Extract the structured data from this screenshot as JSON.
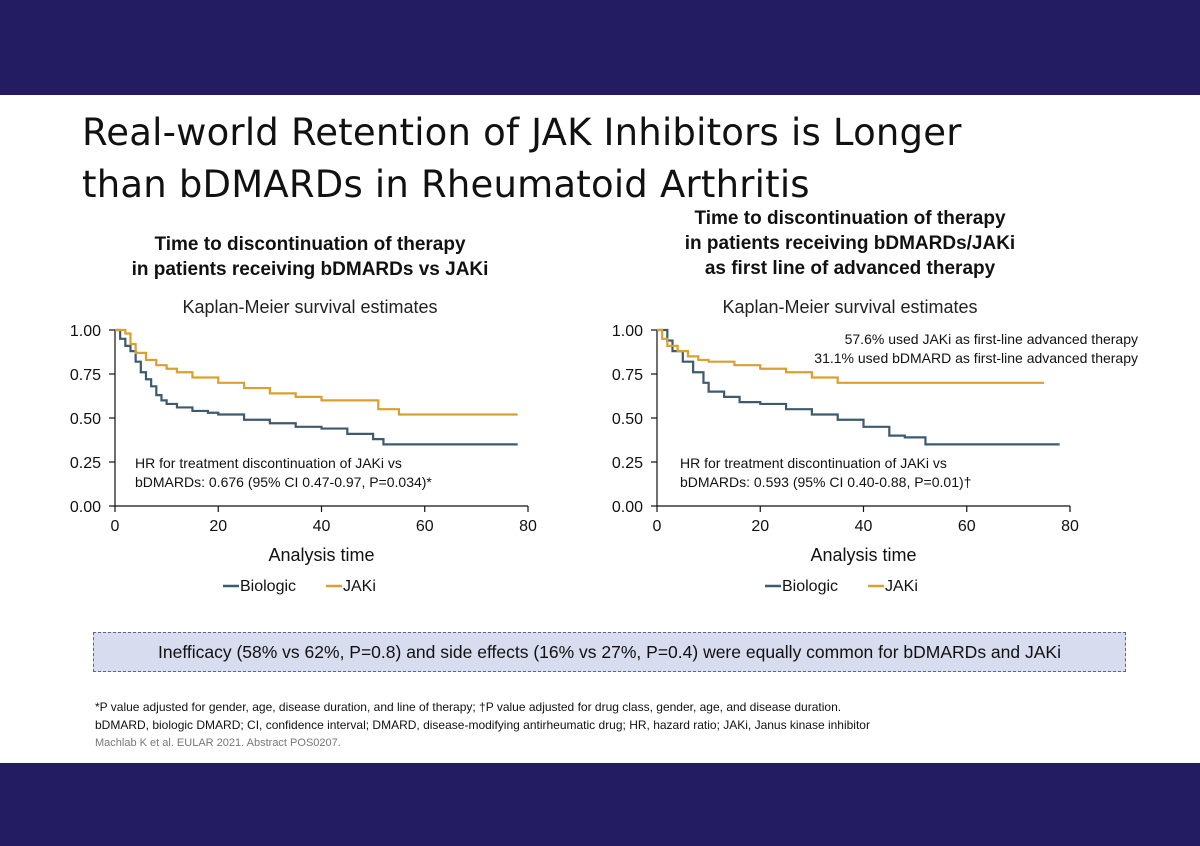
{
  "slide": {
    "title_lines": [
      "Real-world Retention of JAK Inhibitors is Longer",
      "than bDMARDs in Rheumatoid Arthritis"
    ],
    "callout": "Inefficacy (58% vs 62%, P=0.8) and side effects (16% vs 27%, P=0.4) were equally common for bDMARDs and JAKi",
    "footnotes": [
      "*P value adjusted for gender, age, disease duration, and line of therapy; †P value adjusted for drug class, gender, age, and disease duration.",
      "bDMARD, biologic DMARD; CI, confidence interval; DMARD, disease-modifying antirheumatic drug; HR, hazard ratio; JAKi, Janus kinase inhibitor"
    ],
    "reference": "Machlab K et al. EULAR 2021. Abstract POS0207."
  },
  "colors": {
    "background": "#241c63",
    "biologic": "#3e5a6e",
    "jaki": "#d9a02f",
    "callout_bg": "#d7dcee"
  },
  "chart_data": [
    {
      "type": "line",
      "title_lines": [
        "Time to discontinuation of therapy",
        "in patients receiving bDMARDs vs JAKi"
      ],
      "subtitle": "Kaplan-Meier survival estimates",
      "xlabel": "Analysis time",
      "ylabel": "",
      "xlim": [
        0,
        80
      ],
      "ylim": [
        0,
        1
      ],
      "x_ticks": [
        "0",
        "20",
        "40",
        "60",
        "80"
      ],
      "y_ticks": [
        "0.00",
        "0.25",
        "0.50",
        "0.75",
        "1.00"
      ],
      "legend_position": "bottom",
      "annotations": [
        "HR for treatment discontinuation of JAKi vs",
        "bDMARDs: 0.676 (95% CI 0.47-0.97, P=0.034)*"
      ],
      "series": [
        {
          "name": "Biologic",
          "color": "#3e5a6e",
          "x": [
            0,
            1,
            2,
            3,
            4,
            5,
            6,
            7,
            8,
            9,
            10,
            12,
            15,
            18,
            20,
            25,
            30,
            35,
            40,
            45,
            50,
            52,
            60,
            78
          ],
          "y": [
            1.0,
            0.95,
            0.91,
            0.88,
            0.82,
            0.76,
            0.72,
            0.68,
            0.63,
            0.6,
            0.58,
            0.56,
            0.54,
            0.53,
            0.52,
            0.49,
            0.47,
            0.45,
            0.44,
            0.41,
            0.38,
            0.35,
            0.35,
            0.35
          ]
        },
        {
          "name": "JAKi",
          "color": "#d9a02f",
          "x": [
            0,
            2,
            3,
            4,
            6,
            8,
            10,
            12,
            15,
            20,
            25,
            30,
            35,
            40,
            50,
            51,
            55,
            60,
            78
          ],
          "y": [
            1.0,
            0.98,
            0.92,
            0.87,
            0.83,
            0.8,
            0.78,
            0.76,
            0.73,
            0.7,
            0.67,
            0.64,
            0.62,
            0.6,
            0.6,
            0.55,
            0.52,
            0.52,
            0.52
          ]
        }
      ]
    },
    {
      "type": "line",
      "title_lines": [
        "Time to discontinuation of therapy",
        "in patients receiving bDMARDs/JAKi",
        "as first line of advanced therapy"
      ],
      "subtitle": "Kaplan-Meier survival estimates",
      "xlabel": "Analysis time",
      "ylabel": "",
      "xlim": [
        0,
        80
      ],
      "ylim": [
        0,
        1
      ],
      "x_ticks": [
        "0",
        "20",
        "40",
        "60",
        "80"
      ],
      "y_ticks": [
        "0.00",
        "0.25",
        "0.50",
        "0.75",
        "1.00"
      ],
      "legend_position": "bottom",
      "notes": [
        "57.6% used JAKi as first-line advanced therapy",
        "31.1% used bDMARD as first-line advanced therapy"
      ],
      "annotations": [
        "HR for treatment discontinuation of JAKi vs",
        "bDMARDs: 0.593 (95% CI 0.40-0.88, P=0.01)†"
      ],
      "series": [
        {
          "name": "Biologic",
          "color": "#3e5a6e",
          "x": [
            0,
            2,
            3,
            5,
            7,
            9,
            10,
            13,
            16,
            20,
            25,
            30,
            33,
            35,
            40,
            45,
            48,
            52,
            60,
            78
          ],
          "y": [
            1.0,
            0.94,
            0.88,
            0.82,
            0.76,
            0.7,
            0.65,
            0.62,
            0.59,
            0.58,
            0.55,
            0.52,
            0.52,
            0.49,
            0.45,
            0.4,
            0.39,
            0.35,
            0.35,
            0.35
          ]
        },
        {
          "name": "JAKi",
          "color": "#d9a02f",
          "x": [
            0,
            1,
            2,
            4,
            6,
            8,
            10,
            15,
            20,
            25,
            30,
            35,
            40,
            50,
            60,
            75
          ],
          "y": [
            1.0,
            0.95,
            0.91,
            0.88,
            0.85,
            0.83,
            0.82,
            0.8,
            0.78,
            0.76,
            0.73,
            0.7,
            0.7,
            0.7,
            0.7,
            0.7
          ]
        }
      ]
    }
  ]
}
